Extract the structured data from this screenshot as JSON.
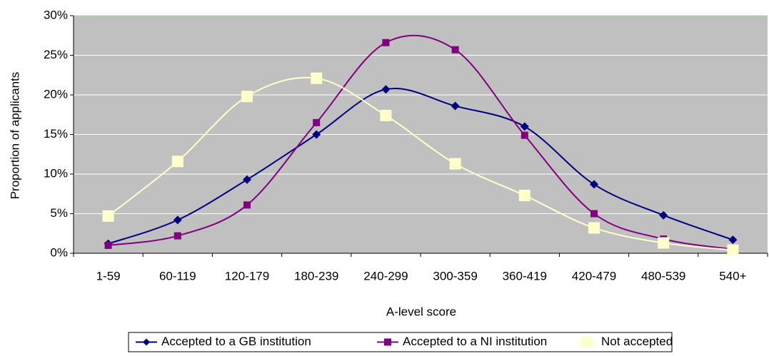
{
  "chart_data": {
    "type": "line",
    "xlabel": "A-level score",
    "ylabel": "Proportion of applicants",
    "categories": [
      "1-59",
      "60-119",
      "120-179",
      "180-239",
      "240-299",
      "300-359",
      "360-419",
      "420-479",
      "480-539",
      "540+"
    ],
    "series": [
      {
        "name": "Accepted to a GB institution",
        "color": "#000080",
        "marker": "diamond",
        "values": [
          1.2,
          4.2,
          9.3,
          15.0,
          20.7,
          18.6,
          16.0,
          8.7,
          4.8,
          1.7
        ]
      },
      {
        "name": "Accepted to a NI institution",
        "color": "#800080",
        "marker": "square",
        "values": [
          1.0,
          2.2,
          6.1,
          16.5,
          26.6,
          25.7,
          14.9,
          5.0,
          1.8,
          0.5
        ]
      },
      {
        "name": "Not accepted",
        "color": "#ffffcc",
        "marker": "square",
        "values": [
          4.7,
          11.6,
          19.8,
          22.1,
          17.4,
          11.3,
          7.3,
          3.2,
          1.3,
          0.4
        ]
      }
    ],
    "ylim": [
      0,
      30
    ],
    "yticks": [
      {
        "value": 0,
        "label": "0%"
      },
      {
        "value": 5,
        "label": "5%"
      },
      {
        "value": 10,
        "label": "10%"
      },
      {
        "value": 15,
        "label": "15%"
      },
      {
        "value": 20,
        "label": "20%"
      },
      {
        "value": 25,
        "label": "25%"
      },
      {
        "value": 30,
        "label": "30%"
      }
    ],
    "grid": true,
    "legend": "bottom"
  }
}
